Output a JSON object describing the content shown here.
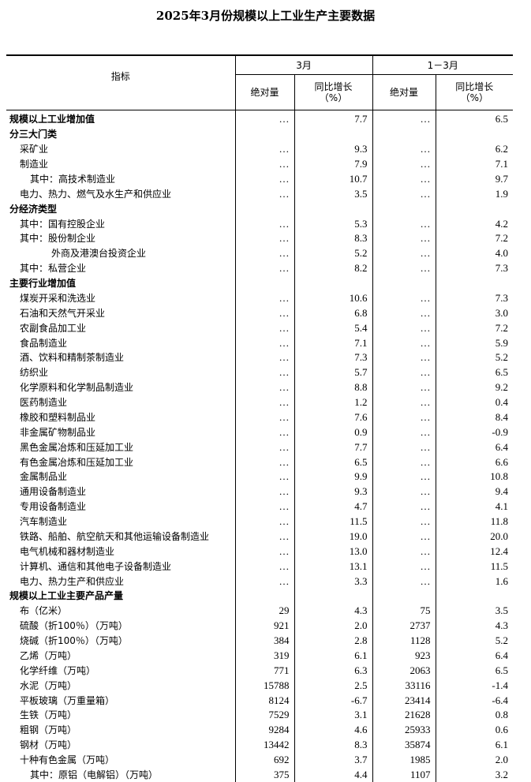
{
  "title": "2025年3月份规模以上工业生产主要数据",
  "header": {
    "indicator": "指标",
    "period1": "3月",
    "period2": "1－3月",
    "absolute": "绝对量",
    "yoy": "同比增长",
    "yoy_unit": "（%）"
  },
  "rows": [
    {
      "label": "规模以上工业增加值",
      "level": 0,
      "v": [
        "…",
        "7.7",
        "…",
        "6.5"
      ]
    },
    {
      "label": "分三大门类",
      "level": 0,
      "v": [
        "",
        "",
        "",
        ""
      ]
    },
    {
      "label": "采矿业",
      "level": 1,
      "v": [
        "…",
        "9.3",
        "…",
        "6.2"
      ]
    },
    {
      "label": "制造业",
      "level": 1,
      "v": [
        "…",
        "7.9",
        "…",
        "7.1"
      ]
    },
    {
      "label": "其中：高技术制造业",
      "level": 2,
      "v": [
        "…",
        "10.7",
        "…",
        "9.7"
      ]
    },
    {
      "label": "电力、热力、燃气及水生产和供应业",
      "level": 1,
      "v": [
        "…",
        "3.5",
        "…",
        "1.9"
      ]
    },
    {
      "label": "分经济类型",
      "level": 0,
      "v": [
        "",
        "",
        "",
        ""
      ]
    },
    {
      "label": "其中：国有控股企业",
      "level": 1,
      "v": [
        "…",
        "5.3",
        "…",
        "4.2"
      ]
    },
    {
      "label": "其中：股份制企业",
      "level": 1,
      "v": [
        "…",
        "8.3",
        "…",
        "7.2"
      ]
    },
    {
      "label": "外商及港澳台投资企业",
      "level": 3,
      "v": [
        "…",
        "5.2",
        "…",
        "4.0"
      ]
    },
    {
      "label": "其中：私营企业",
      "level": 1,
      "v": [
        "…",
        "8.2",
        "…",
        "7.3"
      ]
    },
    {
      "label": "主要行业增加值",
      "level": 0,
      "v": [
        "",
        "",
        "",
        ""
      ]
    },
    {
      "label": "煤炭开采和洗选业",
      "level": 1,
      "v": [
        "…",
        "10.6",
        "…",
        "7.3"
      ]
    },
    {
      "label": "石油和天然气开采业",
      "level": 1,
      "v": [
        "…",
        "6.8",
        "…",
        "3.0"
      ]
    },
    {
      "label": "农副食品加工业",
      "level": 1,
      "v": [
        "…",
        "5.4",
        "…",
        "7.2"
      ]
    },
    {
      "label": "食品制造业",
      "level": 1,
      "v": [
        "…",
        "7.1",
        "…",
        "5.9"
      ]
    },
    {
      "label": "酒、饮料和精制茶制造业",
      "level": 1,
      "v": [
        "…",
        "7.3",
        "…",
        "5.2"
      ]
    },
    {
      "label": "纺织业",
      "level": 1,
      "v": [
        "…",
        "5.7",
        "…",
        "6.5"
      ]
    },
    {
      "label": "化学原料和化学制品制造业",
      "level": 1,
      "v": [
        "…",
        "8.8",
        "…",
        "9.2"
      ]
    },
    {
      "label": "医药制造业",
      "level": 1,
      "v": [
        "…",
        "1.2",
        "…",
        "0.4"
      ]
    },
    {
      "label": "橡胶和塑料制品业",
      "level": 1,
      "v": [
        "…",
        "7.6",
        "…",
        "8.4"
      ]
    },
    {
      "label": "非金属矿物制品业",
      "level": 1,
      "v": [
        "…",
        "0.9",
        "…",
        "-0.9"
      ]
    },
    {
      "label": "黑色金属冶炼和压延加工业",
      "level": 1,
      "v": [
        "…",
        "7.7",
        "…",
        "6.4"
      ]
    },
    {
      "label": "有色金属冶炼和压延加工业",
      "level": 1,
      "v": [
        "…",
        "6.5",
        "…",
        "6.6"
      ]
    },
    {
      "label": "金属制品业",
      "level": 1,
      "v": [
        "…",
        "9.9",
        "…",
        "10.8"
      ]
    },
    {
      "label": "通用设备制造业",
      "level": 1,
      "v": [
        "…",
        "9.3",
        "…",
        "9.4"
      ]
    },
    {
      "label": "专用设备制造业",
      "level": 1,
      "v": [
        "…",
        "4.7",
        "…",
        "4.1"
      ]
    },
    {
      "label": "汽车制造业",
      "level": 1,
      "v": [
        "…",
        "11.5",
        "…",
        "11.8"
      ]
    },
    {
      "label": "铁路、船舶、航空航天和其他运输设备制造业",
      "level": 1,
      "v": [
        "…",
        "19.0",
        "…",
        "20.0"
      ]
    },
    {
      "label": "电气机械和器材制造业",
      "level": 1,
      "v": [
        "…",
        "13.0",
        "…",
        "12.4"
      ]
    },
    {
      "label": "计算机、通信和其他电子设备制造业",
      "level": 1,
      "v": [
        "…",
        "13.1",
        "…",
        "11.5"
      ]
    },
    {
      "label": "电力、热力生产和供应业",
      "level": 1,
      "v": [
        "…",
        "3.3",
        "…",
        "1.6"
      ]
    },
    {
      "label": "规模以上工业主要产品产量",
      "level": 0,
      "v": [
        "",
        "",
        "",
        ""
      ]
    },
    {
      "label": "布（亿米）",
      "level": 1,
      "v": [
        "29",
        "4.3",
        "75",
        "3.5"
      ]
    },
    {
      "label": "硫酸（折100％）（万吨）",
      "level": 1,
      "v": [
        "921",
        "2.0",
        "2737",
        "4.3"
      ]
    },
    {
      "label": "烧碱（折100％）（万吨）",
      "level": 1,
      "v": [
        "384",
        "2.8",
        "1128",
        "5.2"
      ]
    },
    {
      "label": "乙烯（万吨）",
      "level": 1,
      "v": [
        "319",
        "6.1",
        "923",
        "6.4"
      ]
    },
    {
      "label": "化学纤维（万吨）",
      "level": 1,
      "v": [
        "771",
        "6.3",
        "2063",
        "6.5"
      ]
    },
    {
      "label": "水泥（万吨）",
      "level": 1,
      "v": [
        "15788",
        "2.5",
        "33116",
        "-1.4"
      ]
    },
    {
      "label": "平板玻璃（万重量箱）",
      "level": 1,
      "v": [
        "8124",
        "-6.7",
        "23414",
        "-6.4"
      ]
    },
    {
      "label": "生铁（万吨）",
      "level": 1,
      "v": [
        "7529",
        "3.1",
        "21628",
        "0.8"
      ]
    },
    {
      "label": "粗钢（万吨）",
      "level": 1,
      "v": [
        "9284",
        "4.6",
        "25933",
        "0.6"
      ]
    },
    {
      "label": "钢材（万吨）",
      "level": 1,
      "v": [
        "13442",
        "8.3",
        "35874",
        "6.1"
      ]
    },
    {
      "label": "十种有色金属（万吨）",
      "level": 1,
      "v": [
        "692",
        "3.7",
        "1985",
        "2.0"
      ]
    },
    {
      "label": "其中：原铝（电解铝）（万吨）",
      "level": 2,
      "v": [
        "375",
        "4.4",
        "1107",
        "3.2"
      ]
    }
  ]
}
